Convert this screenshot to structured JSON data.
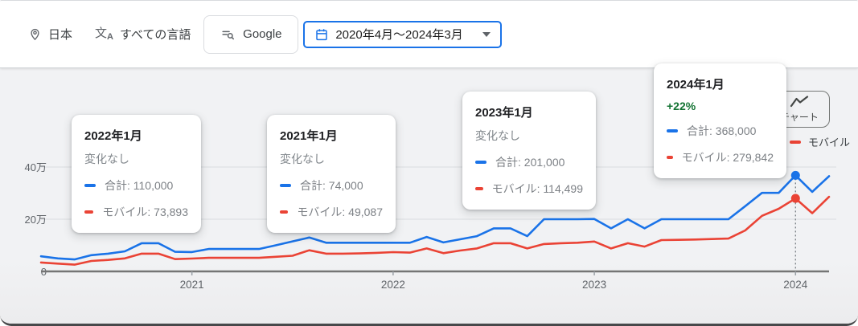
{
  "toolbar": {
    "location_label": "日本",
    "language_label": "すべての言語",
    "engine_label": "Google",
    "date_range_label": "2020年4月〜2024年3月"
  },
  "chart_button_label": "チャート",
  "legend": {
    "mobile": "モバイル"
  },
  "tooltips": [
    {
      "title": "2022年1月",
      "change": "変化なし",
      "rows": [
        {
          "text": "合計: 110,000"
        },
        {
          "text": "モバイル: 73,893"
        }
      ]
    },
    {
      "title": "2021年1月",
      "change": "変化なし",
      "rows": [
        {
          "text": "合計: 74,000"
        },
        {
          "text": "モバイル: 49,087"
        }
      ]
    },
    {
      "title": "2023年1月",
      "change": "変化なし",
      "rows": [
        {
          "text": "合計: 201,000"
        },
        {
          "text": "モバイル: 114,499"
        }
      ]
    },
    {
      "title": "2024年1月",
      "change": "+22%",
      "rows": [
        {
          "text": "合計: 368,000"
        },
        {
          "text": "モバイル: 279,842"
        }
      ]
    }
  ],
  "chart_data": {
    "type": "line",
    "title": "",
    "x": [
      "2020-04",
      "2020-05",
      "2020-06",
      "2020-07",
      "2020-08",
      "2020-09",
      "2020-10",
      "2020-11",
      "2020-12",
      "2021-01",
      "2021-02",
      "2021-03",
      "2021-04",
      "2021-05",
      "2021-06",
      "2021-07",
      "2021-08",
      "2021-09",
      "2021-10",
      "2021-11",
      "2021-12",
      "2022-01",
      "2022-02",
      "2022-03",
      "2022-04",
      "2022-05",
      "2022-06",
      "2022-07",
      "2022-08",
      "2022-09",
      "2022-10",
      "2022-11",
      "2022-12",
      "2023-01",
      "2023-02",
      "2023-03",
      "2023-04",
      "2023-05",
      "2023-06",
      "2023-07",
      "2023-08",
      "2023-09",
      "2023-10",
      "2023-11",
      "2023-12",
      "2024-01",
      "2024-02",
      "2024-03"
    ],
    "series": [
      {
        "name": "合計",
        "color": "#1a73e8",
        "values": [
          58000,
          50000,
          46000,
          62000,
          68000,
          77000,
          108000,
          108000,
          75000,
          74000,
          86000,
          86000,
          86000,
          86000,
          100000,
          115000,
          130000,
          110000,
          110000,
          110000,
          110000,
          110000,
          110000,
          132000,
          111000,
          123000,
          135000,
          165000,
          165000,
          135000,
          200000,
          200000,
          200000,
          201000,
          165000,
          200000,
          165000,
          200000,
          200000,
          200000,
          200000,
          200000,
          250000,
          301000,
          301000,
          368000,
          305000,
          365000
        ]
      },
      {
        "name": "モバイル",
        "color": "#ea4335",
        "values": [
          34000,
          30000,
          26000,
          40000,
          44000,
          50000,
          68000,
          68000,
          47000,
          49087,
          52000,
          52000,
          52000,
          52000,
          56000,
          60000,
          81000,
          68000,
          68000,
          69000,
          71000,
          73893,
          72000,
          88000,
          70000,
          80000,
          88000,
          108000,
          108000,
          88000,
          105000,
          108000,
          110000,
          114499,
          88000,
          108000,
          95000,
          120000,
          121000,
          122000,
          124000,
          126000,
          157000,
          213000,
          240000,
          279842,
          223000,
          286000
        ]
      }
    ],
    "y_ticks": [
      {
        "value": 0,
        "label": "0"
      },
      {
        "value": 200000,
        "label": "20万"
      },
      {
        "value": 400000,
        "label": "40万"
      }
    ],
    "x_ticks": [
      {
        "x": "2021-01",
        "label": "2021"
      },
      {
        "x": "2022-01",
        "label": "2022"
      },
      {
        "x": "2023-01",
        "label": "2023"
      },
      {
        "x": "2024-01",
        "label": "2024"
      }
    ],
    "ylim": [
      0,
      420000
    ],
    "grid": true,
    "highlight_x": "2024-01",
    "legend_position": "top-right"
  },
  "colors": {
    "total": "#1a73e8",
    "mobile": "#ea4335",
    "positive_change": "#137333",
    "grid": "#e1e3e6",
    "axis": "#80868b",
    "accent_border": "#1a73e8"
  }
}
